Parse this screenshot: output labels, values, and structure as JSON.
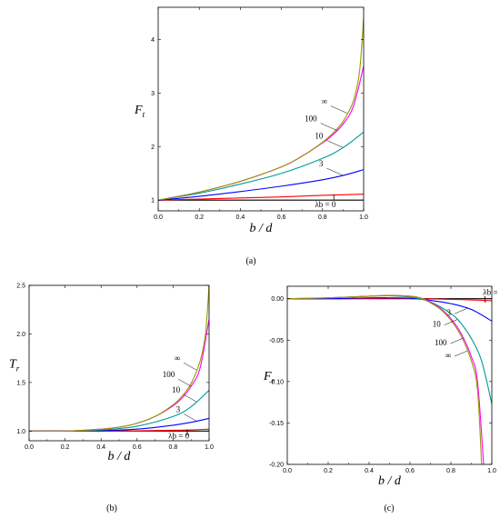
{
  "chart_data": [
    {
      "type": "line",
      "caption": "(a)",
      "xlabel": "b / d",
      "ylabel": "F",
      "ylabel_sub": "t",
      "xlim": [
        0,
        1
      ],
      "ylim": [
        0.8,
        4.6
      ],
      "xticks": [
        "0.0",
        "0.2",
        "0.4",
        "0.6",
        "0.8",
        "1.0"
      ],
      "yticks": [
        "1",
        "2",
        "3",
        "4"
      ],
      "series": [
        {
          "name": "λb = 0",
          "color": "#000000",
          "x": [
            0,
            0.2,
            0.4,
            0.6,
            0.8,
            0.9,
            1.0
          ],
          "y": [
            1,
            1,
            1,
            1,
            1,
            1,
            1
          ]
        },
        {
          "name": "1",
          "color": "#ff0000",
          "x": [
            0,
            0.2,
            0.4,
            0.6,
            0.8,
            0.9,
            1.0
          ],
          "y": [
            1,
            1.02,
            1.04,
            1.06,
            1.09,
            1.1,
            1.11
          ]
        },
        {
          "name": "3",
          "color": "#0000ff",
          "x": [
            0,
            0.2,
            0.4,
            0.6,
            0.8,
            0.9,
            1.0
          ],
          "y": [
            1,
            1.07,
            1.16,
            1.26,
            1.38,
            1.46,
            1.57
          ]
        },
        {
          "name": "10",
          "color": "#009999",
          "x": [
            0,
            0.2,
            0.4,
            0.6,
            0.8,
            0.9,
            1.0
          ],
          "y": [
            1,
            1.13,
            1.3,
            1.5,
            1.78,
            1.98,
            2.27
          ]
        },
        {
          "name": "100",
          "color": "#ff00ff",
          "x": [
            0,
            0.2,
            0.4,
            0.6,
            0.7,
            0.8,
            0.85,
            0.9,
            0.95,
            1.0
          ],
          "y": [
            1,
            1.15,
            1.35,
            1.62,
            1.82,
            2.07,
            2.22,
            2.42,
            2.75,
            3.5
          ]
        },
        {
          "name": "∞",
          "color": "#999900",
          "x": [
            0,
            0.2,
            0.4,
            0.6,
            0.7,
            0.8,
            0.85,
            0.9,
            0.95,
            0.98,
            1.0
          ],
          "y": [
            1,
            1.15,
            1.35,
            1.62,
            1.82,
            2.08,
            2.25,
            2.47,
            2.85,
            3.4,
            4.4
          ]
        }
      ],
      "annotations": [
        {
          "text": "∞",
          "series": "∞",
          "x": 0.92
        },
        {
          "text": "100",
          "series": "100",
          "x": 0.87
        },
        {
          "text": "10",
          "series": "10",
          "x": 0.9
        },
        {
          "text": "3",
          "series": "3",
          "x": 0.9
        },
        {
          "text": "1",
          "series": "1",
          "x": 0.9
        },
        {
          "text": "λb = 0",
          "series": "λb = 0",
          "x": 0.9
        }
      ]
    },
    {
      "type": "line",
      "caption": "(b)",
      "xlabel": "b / d",
      "ylabel": "T",
      "ylabel_sub": "r",
      "xlim": [
        0,
        1
      ],
      "ylim": [
        0.9,
        2.5
      ],
      "xticks": [
        "0.0",
        "0.2",
        "0.4",
        "0.6",
        "0.8",
        "1.0"
      ],
      "yticks": [
        "1.0",
        "1.5",
        "2.0",
        "2.5"
      ],
      "series": [
        {
          "name": "λb = 0",
          "color": "#000000",
          "x": [
            0,
            0.2,
            0.4,
            0.6,
            0.8,
            1.0
          ],
          "y": [
            1,
            1,
            1,
            1,
            1,
            1
          ]
        },
        {
          "name": "1",
          "color": "#ff0000",
          "x": [
            0,
            0.2,
            0.4,
            0.6,
            0.8,
            0.9,
            1.0
          ],
          "y": [
            1,
            1,
            1,
            1.003,
            1.008,
            1.012,
            1.02
          ]
        },
        {
          "name": "3",
          "color": "#0000ff",
          "x": [
            0,
            0.2,
            0.4,
            0.6,
            0.8,
            0.9,
            1.0
          ],
          "y": [
            1,
            1,
            1.005,
            1.02,
            1.06,
            1.09,
            1.13
          ]
        },
        {
          "name": "10",
          "color": "#009999",
          "x": [
            0,
            0.2,
            0.4,
            0.6,
            0.8,
            0.9,
            1.0
          ],
          "y": [
            1,
            1,
            1.01,
            1.05,
            1.15,
            1.25,
            1.42
          ]
        },
        {
          "name": "100",
          "color": "#ff00ff",
          "x": [
            0,
            0.2,
            0.4,
            0.5,
            0.6,
            0.7,
            0.8,
            0.85,
            0.9,
            0.95,
            1.0
          ],
          "y": [
            1,
            1,
            1.02,
            1.04,
            1.08,
            1.15,
            1.26,
            1.34,
            1.46,
            1.65,
            2.15
          ]
        },
        {
          "name": "∞",
          "color": "#999900",
          "x": [
            0,
            0.2,
            0.4,
            0.5,
            0.6,
            0.7,
            0.8,
            0.85,
            0.9,
            0.95,
            0.98,
            1.0
          ],
          "y": [
            1,
            1,
            1.02,
            1.04,
            1.08,
            1.15,
            1.27,
            1.36,
            1.49,
            1.72,
            2.0,
            2.5
          ]
        }
      ],
      "annotations": [
        {
          "text": "∞",
          "series": "∞",
          "x": 0.93
        },
        {
          "text": "100",
          "series": "100",
          "x": 0.9
        },
        {
          "text": "10",
          "series": "10",
          "x": 0.93
        },
        {
          "text": "3",
          "series": "3",
          "x": 0.93
        },
        {
          "text": "1",
          "series": "1",
          "x": 0.93
        },
        {
          "text": "λb = 0",
          "series": "λb = 0",
          "x": 0.93
        }
      ]
    },
    {
      "type": "line",
      "caption": "(c)",
      "xlabel": "b / d",
      "ylabel": "F",
      "ylabel_sub": "r",
      "xlim": [
        0,
        1
      ],
      "ylim": [
        -0.2,
        0.015
      ],
      "xticks": [
        "0.0",
        "0.2",
        "0.4",
        "0.6",
        "0.8",
        "1.0"
      ],
      "yticks": [
        "0.00",
        "-0.05",
        "-0.10",
        "-0.15",
        "-0.20"
      ],
      "series": [
        {
          "name": "λb = 0",
          "color": "#000000",
          "x": [
            0,
            0.2,
            0.4,
            0.6,
            0.8,
            1.0
          ],
          "y": [
            0,
            0,
            0,
            0,
            0,
            0
          ]
        },
        {
          "name": "1",
          "color": "#ff0000",
          "x": [
            0,
            0.2,
            0.4,
            0.6,
            0.8,
            0.9,
            1.0
          ],
          "y": [
            0,
            0,
            0.0003,
            0.0002,
            -0.0008,
            -0.0015,
            -0.0025
          ]
        },
        {
          "name": "3",
          "color": "#0000ff",
          "x": [
            0,
            0.2,
            0.4,
            0.5,
            0.6,
            0.7,
            0.8,
            0.9,
            1.0
          ],
          "y": [
            0,
            0,
            0.001,
            0.001,
            0.0005,
            -0.002,
            -0.006,
            -0.013,
            -0.027
          ]
        },
        {
          "name": "10",
          "color": "#009999",
          "x": [
            0,
            0.2,
            0.4,
            0.5,
            0.6,
            0.7,
            0.8,
            0.85,
            0.9,
            0.95,
            1.0
          ],
          "y": [
            0,
            0.001,
            0.003,
            0.0035,
            0.002,
            -0.004,
            -0.018,
            -0.03,
            -0.048,
            -0.075,
            -0.127
          ]
        },
        {
          "name": "100",
          "color": "#ff00ff",
          "x": [
            0,
            0.2,
            0.4,
            0.5,
            0.6,
            0.65,
            0.7,
            0.75,
            0.8,
            0.85,
            0.9,
            0.93,
            0.96
          ],
          "y": [
            0,
            0.001,
            0.003,
            0.004,
            0.003,
            0.001,
            -0.004,
            -0.012,
            -0.024,
            -0.042,
            -0.07,
            -0.1,
            -0.2
          ]
        },
        {
          "name": "∞",
          "color": "#999900",
          "x": [
            0,
            0.2,
            0.4,
            0.5,
            0.6,
            0.65,
            0.7,
            0.75,
            0.8,
            0.85,
            0.9,
            0.93,
            0.95
          ],
          "y": [
            0,
            0.001,
            0.003,
            0.004,
            0.003,
            0.001,
            -0.005,
            -0.013,
            -0.026,
            -0.045,
            -0.075,
            -0.11,
            -0.2
          ]
        }
      ],
      "annotations": [
        {
          "text": "λb = 0",
          "series": "λb = 0",
          "x": 0.93
        },
        {
          "text": "1",
          "series": "1",
          "x": 0.93
        },
        {
          "text": "3",
          "series": "3",
          "x": 0.88
        },
        {
          "text": "10",
          "series": "10",
          "x": 0.83
        },
        {
          "text": "100",
          "series": "100",
          "x": 0.86
        },
        {
          "text": "∞",
          "series": "∞",
          "x": 0.88
        }
      ]
    }
  ]
}
